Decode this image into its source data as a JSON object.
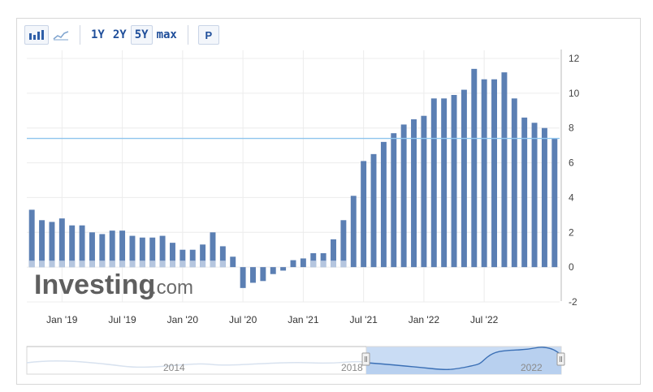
{
  "toolbar": {
    "chart_type_icons": [
      "bar-chart-icon",
      "line-chart-icon"
    ],
    "ranges": [
      "1Y",
      "2Y",
      "5Y",
      "max"
    ],
    "active_range": "5Y",
    "p_label": "P"
  },
  "watermark": {
    "brand": "Investing",
    "suffix": ".com"
  },
  "navigator": {
    "labels": [
      "2014",
      "2018",
      "2022"
    ]
  },
  "colors": {
    "bar": "#5b7fb3",
    "bar_faded": "#b5c6df",
    "ref_line": "#8ec4ee",
    "nav_fill": "#c9dcf4",
    "nav_line": "#3a6fb5"
  },
  "chart_data": {
    "type": "bar",
    "ylim": [
      -2,
      12
    ],
    "yticks": [
      "-2",
      "0",
      "2",
      "4",
      "6",
      "8",
      "10",
      "12"
    ],
    "xtick_labels": [
      "Jan '19",
      "Jul '19",
      "Jan '20",
      "Jul '20",
      "Jan '21",
      "Jul '21",
      "Jan '22",
      "Jul '22"
    ],
    "xtick_index": [
      3,
      9,
      15,
      21,
      27,
      33,
      39,
      45
    ],
    "reference_value": 7.4,
    "values": [
      3.3,
      2.7,
      2.6,
      2.8,
      2.4,
      2.4,
      2.0,
      1.9,
      2.1,
      2.1,
      1.8,
      1.7,
      1.7,
      1.8,
      1.4,
      1.0,
      1.0,
      1.3,
      2.0,
      1.2,
      0.6,
      -1.2,
      -0.9,
      -0.8,
      -0.4,
      -0.2,
      0.4,
      0.5,
      0.8,
      0.8,
      1.6,
      2.7,
      4.1,
      6.1,
      6.5,
      7.2,
      7.7,
      8.2,
      8.5,
      8.7,
      9.7,
      9.7,
      9.9,
      10.2,
      11.4,
      10.8,
      10.8,
      11.2,
      9.7,
      8.6,
      8.3,
      8.0,
      7.4
    ]
  }
}
